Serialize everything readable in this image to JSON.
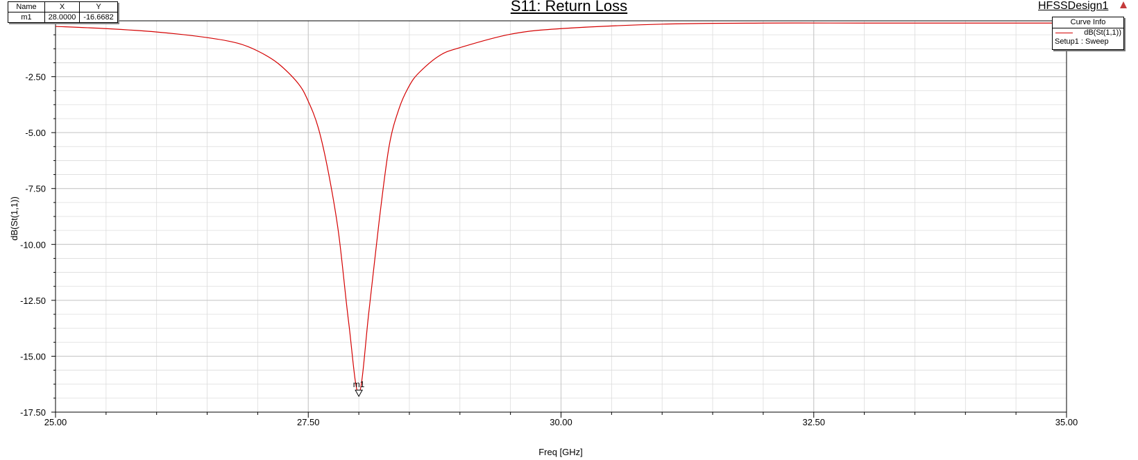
{
  "header": {
    "title": "S11: Return Loss",
    "design": "HFSSDesign1"
  },
  "marker_table": {
    "headers": [
      "Name",
      "X",
      "Y"
    ],
    "rows": [
      [
        "m1",
        "28.0000",
        "-16.6682"
      ]
    ]
  },
  "legend": {
    "header": "Curve Info",
    "entry": "dB(St(1,1))",
    "sub": "Setup1 : Sweep"
  },
  "colors": {
    "curve": "#d40000",
    "grid": "#dcdcdc",
    "axis": "#000000",
    "design_icon": "#c43a3a"
  },
  "chart_data": {
    "type": "line",
    "title": "S11: Return Loss",
    "xlabel": "Freq [GHz]",
    "ylabel": "dB(St(1,1))",
    "xlim": [
      25,
      35
    ],
    "ylim": [
      -17.5,
      0
    ],
    "xticks": [
      25,
      27.5,
      30,
      32.5,
      35
    ],
    "xtick_labels": [
      "25.00",
      "27.50",
      "30.00",
      "32.50",
      "35.00"
    ],
    "yticks": [
      -2.5,
      -5,
      -7.5,
      -10,
      -12.5,
      -15,
      -17.5
    ],
    "ytick_labels": [
      "-2.50",
      "-5.00",
      "-7.50",
      "-10.00",
      "-12.50",
      "-15.00",
      "-17.50"
    ],
    "grid": true,
    "legend_position": "top-right",
    "series": [
      {
        "name": "dB(St(1,1))",
        "x": [
          25,
          25.5,
          26,
          26.5,
          26.8,
          27,
          27.2,
          27.4,
          27.5,
          27.6,
          27.7,
          27.8,
          27.9,
          28,
          28.1,
          28.2,
          28.3,
          28.4,
          28.5,
          28.6,
          28.8,
          29,
          29.5,
          30,
          31,
          32,
          33,
          34,
          35
        ],
        "y": [
          -0.25,
          -0.35,
          -0.5,
          -0.75,
          -1.0,
          -1.35,
          -1.9,
          -2.8,
          -3.6,
          -4.8,
          -6.8,
          -9.5,
          -13.5,
          -16.67,
          -13.0,
          -9.0,
          -5.6,
          -3.9,
          -2.9,
          -2.3,
          -1.55,
          -1.2,
          -0.6,
          -0.35,
          -0.15,
          -0.1,
          -0.1,
          -0.1,
          -0.1
        ]
      }
    ],
    "markers": [
      {
        "name": "m1",
        "x": 28.0,
        "y": -16.6682
      }
    ]
  }
}
